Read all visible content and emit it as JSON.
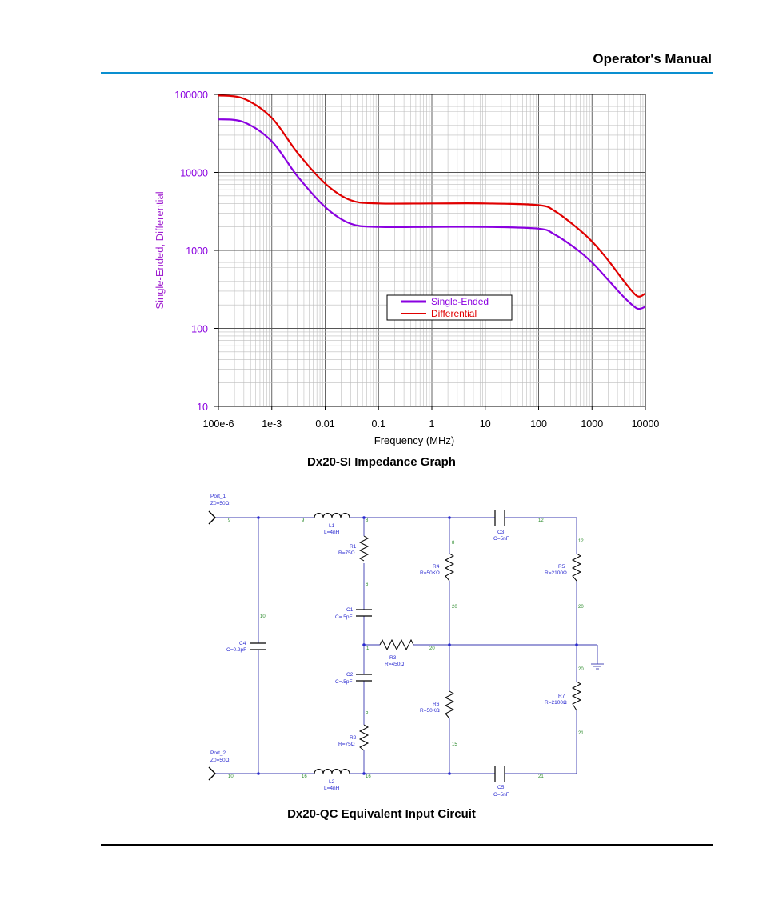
{
  "header": {
    "title": "Operator's Manual"
  },
  "colors": {
    "accent_rule": "#0a8fd0",
    "single_ended": "#8a00e0",
    "differential": "#e00000",
    "y_label": "#a020d0",
    "wire": "#3a3ab0"
  },
  "chart_data": {
    "type": "line",
    "title": "",
    "xlabel": "Frequency (MHz)",
    "ylabel": "Single-Ended, Differential",
    "xscale": "log",
    "yscale": "log",
    "xlim": [
      0.0001,
      10000
    ],
    "ylim": [
      10,
      100000
    ],
    "x_tick_labels": [
      "100e-6",
      "1e-3",
      "0.01",
      "0.1",
      "1",
      "10",
      "100",
      "1000",
      "10000"
    ],
    "y_tick_labels": [
      "100000",
      "10000",
      "1000",
      "100",
      "10"
    ],
    "grid": true,
    "legend_position": "center-right",
    "series": [
      {
        "name": "Single-Ended",
        "x": [
          0.0001,
          0.0003,
          0.001,
          0.003,
          0.01,
          0.03,
          0.1,
          1,
          10,
          100,
          200,
          500,
          1000,
          2000,
          4000,
          7000,
          10000
        ],
        "values": [
          48000,
          44000,
          25000,
          9000,
          3600,
          2200,
          2000,
          2000,
          2000,
          1900,
          1600,
          1050,
          700,
          420,
          250,
          180,
          190
        ]
      },
      {
        "name": "Differential",
        "x": [
          0.0001,
          0.0003,
          0.001,
          0.003,
          0.01,
          0.03,
          0.1,
          1,
          10,
          100,
          200,
          500,
          1000,
          2000,
          4000,
          7000,
          10000
        ],
        "values": [
          97000,
          88000,
          50000,
          18000,
          7200,
          4400,
          4000,
          4000,
          4000,
          3800,
          3200,
          2000,
          1300,
          750,
          400,
          260,
          280
        ]
      }
    ]
  },
  "chart_caption": "Dx20-SI Impedance Graph",
  "circuit": {
    "ports": [
      {
        "name": "Port_1",
        "impedance": "Z0=50Ω",
        "node": "9"
      },
      {
        "name": "Port_2",
        "impedance": "Z0=50Ω",
        "node": "10"
      }
    ],
    "components": [
      {
        "name": "L1",
        "value": "L=4nH"
      },
      {
        "name": "L2",
        "value": "L=4nH"
      },
      {
        "name": "R1",
        "value": "R=75Ω"
      },
      {
        "name": "R2",
        "value": "R=75Ω"
      },
      {
        "name": "R3",
        "value": "R=450Ω"
      },
      {
        "name": "R4",
        "value": "R=50KΩ"
      },
      {
        "name": "R5",
        "value": "R=2100Ω"
      },
      {
        "name": "R6",
        "value": "R=50KΩ"
      },
      {
        "name": "R7",
        "value": "R=2100Ω"
      },
      {
        "name": "C1",
        "value": "C=.5pF"
      },
      {
        "name": "C2",
        "value": "C=.5pF"
      },
      {
        "name": "C3",
        "value": "C=5nF"
      },
      {
        "name": "C4",
        "value": "C=0.2pF"
      },
      {
        "name": "C5",
        "value": "C=5nF"
      }
    ],
    "nodes": [
      "9",
      "9",
      "8",
      "8",
      "12",
      "12",
      "6",
      "20",
      "20",
      "1",
      "20",
      "20",
      "10",
      "5",
      "15",
      "21",
      "10",
      "16",
      "16",
      "21"
    ]
  },
  "circuit_caption": "Dx20-QC Equivalent Input Circuit"
}
